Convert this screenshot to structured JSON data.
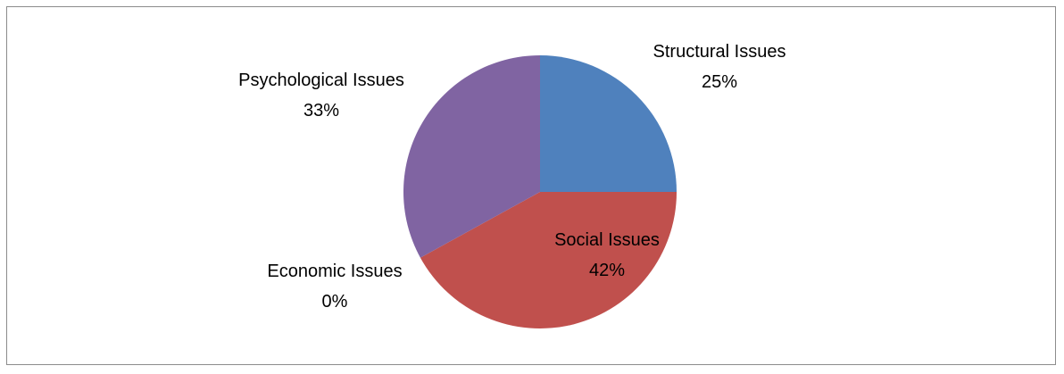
{
  "chart_data": {
    "type": "pie",
    "title": "",
    "series": [
      {
        "values": [
          {
            "label": "Structural Issues",
            "value": 25,
            "value_label": "25%",
            "color": "#4f81bd"
          },
          {
            "label": "Social Issues",
            "value": 42,
            "value_label": "42%",
            "color": "#c0504d"
          },
          {
            "label": "Economic Issues",
            "value": 0,
            "value_label": "0%",
            "color": "#9bbb59"
          },
          {
            "label": "Psychological Issues",
            "value": 33,
            "value_label": "33%",
            "color": "#8064a2"
          }
        ]
      }
    ],
    "legend": "none",
    "data_labels": "category-and-percent"
  }
}
